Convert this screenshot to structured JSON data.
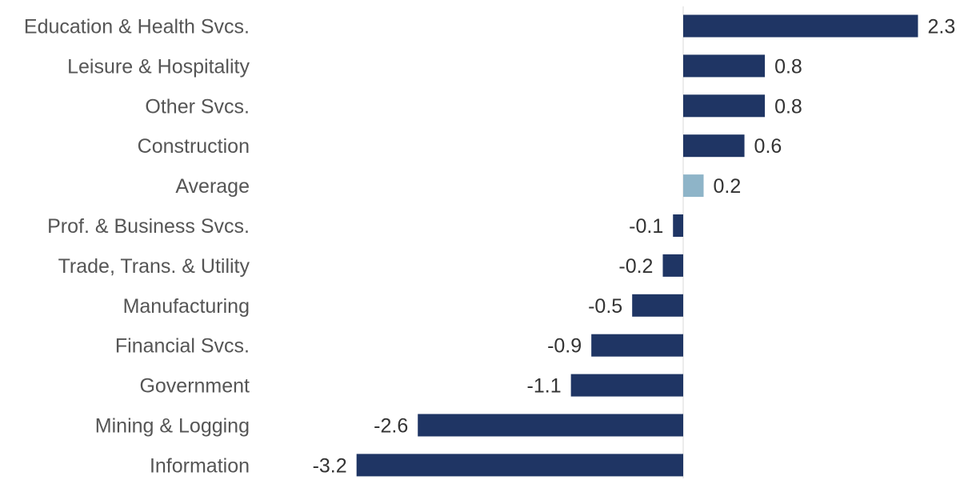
{
  "chart_data": {
    "type": "bar",
    "orientation": "horizontal",
    "categories": [
      "Education & Health Svcs.",
      "Leisure & Hospitality",
      "Other Svcs.",
      "Construction",
      "Average",
      "Prof. & Business Svcs.",
      "Trade, Trans. & Utility",
      "Manufacturing",
      "Financial Svcs.",
      "Government",
      "Mining & Logging",
      "Information"
    ],
    "values": [
      2.3,
      0.8,
      0.8,
      0.6,
      0.2,
      -0.1,
      -0.2,
      -0.5,
      -0.9,
      -1.1,
      -2.6,
      -3.2
    ],
    "value_labels": [
      "2.3",
      "0.8",
      "0.8",
      "0.6",
      "0.2",
      "-0.1",
      "-0.2",
      "-0.5",
      "-0.9",
      "-1.1",
      "-2.6",
      "-3.2"
    ],
    "highlight_category": "Average",
    "xlim": [
      -3.2,
      2.3
    ],
    "grid": false,
    "legend": "none",
    "colors": {
      "bar": "#1f3564",
      "highlight": "#8eb4c8",
      "axis": "#d9d9d9",
      "category_text": "#555555",
      "value_text": "#333333"
    }
  }
}
